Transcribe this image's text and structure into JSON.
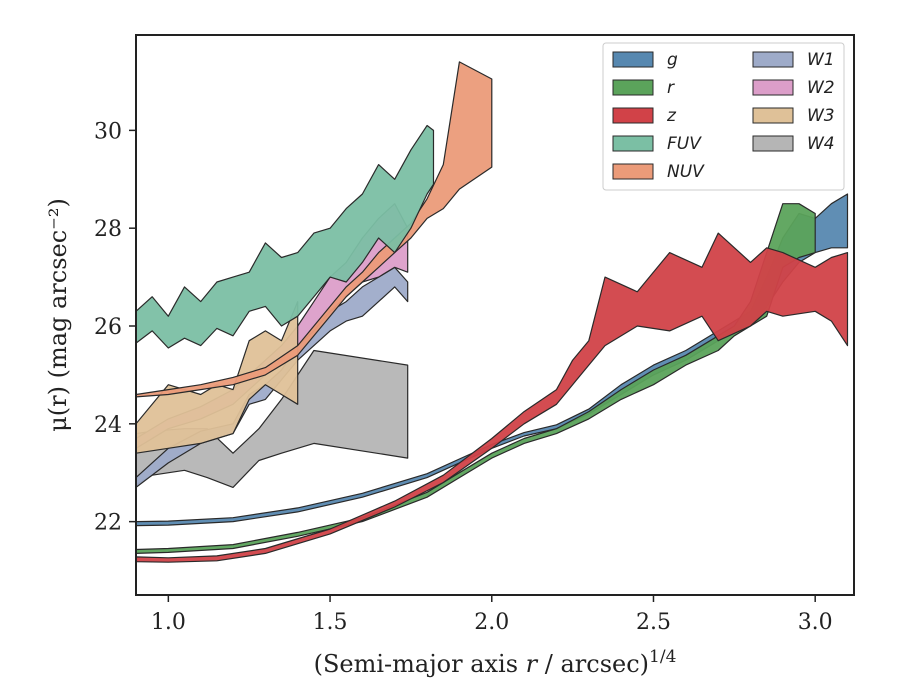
{
  "chart_data": {
    "type": "area",
    "xlabel": "(Semi-major axis r / arcsec)^1/4",
    "ylabel": "μ(r) (mag arcsec⁻²)",
    "xlim": [
      0.9,
      3.12
    ],
    "ylim": [
      31.95,
      20.5
    ],
    "y_inverted": true,
    "xticks": [
      1.0,
      1.5,
      2.0,
      2.5,
      3.0
    ],
    "xtick_labels": [
      "1.0",
      "1.5",
      "2.0",
      "2.5",
      "3.0"
    ],
    "yticks": [
      22,
      24,
      26,
      28,
      30
    ],
    "ytick_labels": [
      "22",
      "24",
      "26",
      "28",
      "30"
    ],
    "grid": false,
    "legend": {
      "position": "top-right",
      "columns": 2
    },
    "series": [
      {
        "name": "W4",
        "color": "#b5b5b5",
        "x": [
          0.9,
          0.95,
          1.05,
          1.12,
          1.2,
          1.28,
          1.35,
          1.45,
          1.74
        ],
        "y_lo": [
          22.75,
          22.95,
          23.05,
          22.9,
          22.7,
          23.25,
          23.4,
          23.6,
          23.3
        ],
        "y_hi": [
          23.8,
          23.85,
          23.9,
          23.9,
          23.4,
          23.9,
          24.5,
          25.5,
          25.2
        ]
      },
      {
        "name": "W1",
        "color": "#9eabc9",
        "x": [
          0.9,
          1.0,
          1.1,
          1.2,
          1.25,
          1.3,
          1.35,
          1.4,
          1.45,
          1.5,
          1.55,
          1.6,
          1.65,
          1.7,
          1.74
        ],
        "y_lo": [
          22.7,
          23.2,
          23.6,
          23.8,
          24.4,
          24.5,
          24.9,
          25.3,
          25.6,
          25.9,
          26.1,
          26.2,
          26.5,
          26.8,
          26.5
        ],
        "y_hi": [
          22.9,
          23.5,
          23.85,
          24.0,
          24.6,
          24.8,
          25.1,
          25.6,
          26.0,
          26.3,
          26.5,
          26.8,
          27.0,
          27.2,
          26.9
        ]
      },
      {
        "name": "W2",
        "color": "#dc9ec9",
        "x": [
          0.9,
          1.0,
          1.1,
          1.2,
          1.25,
          1.3,
          1.35,
          1.4,
          1.45,
          1.5,
          1.55,
          1.6,
          1.65,
          1.7,
          1.74
        ],
        "y_lo": [
          23.5,
          23.9,
          24.1,
          24.4,
          24.7,
          25.0,
          25.3,
          25.6,
          25.9,
          26.3,
          26.6,
          26.9,
          27.0,
          27.2,
          27.1
        ],
        "y_hi": [
          23.7,
          24.1,
          24.35,
          24.7,
          25.0,
          25.3,
          25.6,
          26.0,
          26.5,
          27.0,
          27.3,
          27.8,
          28.2,
          28.5,
          28.0
        ]
      },
      {
        "name": "W3",
        "color": "#dfc198",
        "x": [
          0.9,
          1.0,
          1.1,
          1.15,
          1.2,
          1.25,
          1.3,
          1.35,
          1.4
        ],
        "y_lo": [
          23.4,
          23.5,
          23.6,
          23.7,
          23.8,
          24.5,
          24.8,
          24.6,
          24.4
        ],
        "y_hi": [
          24.0,
          24.8,
          24.6,
          24.8,
          24.7,
          25.7,
          25.9,
          25.7,
          26.5
        ]
      },
      {
        "name": "NUV",
        "color": "#eb9b79",
        "x": [
          0.9,
          1.0,
          1.1,
          1.2,
          1.3,
          1.4,
          1.45,
          1.5,
          1.55,
          1.6,
          1.65,
          1.7,
          1.75,
          1.8,
          1.85,
          1.9,
          2.0
        ],
        "y_lo": [
          24.55,
          24.6,
          24.7,
          24.8,
          25.0,
          25.4,
          25.8,
          26.2,
          26.6,
          26.9,
          27.2,
          27.5,
          27.8,
          28.2,
          28.4,
          28.8,
          29.25
        ],
        "y_hi": [
          24.6,
          24.7,
          24.8,
          24.95,
          25.15,
          25.6,
          26.0,
          26.4,
          26.8,
          27.1,
          27.5,
          27.8,
          28.1,
          28.6,
          29.3,
          31.4,
          31.05
        ]
      },
      {
        "name": "FUV",
        "color": "#7bbfa4",
        "x": [
          0.9,
          0.95,
          1.0,
          1.05,
          1.1,
          1.15,
          1.2,
          1.25,
          1.3,
          1.35,
          1.4,
          1.45,
          1.5,
          1.55,
          1.6,
          1.65,
          1.7,
          1.75,
          1.8,
          1.82
        ],
        "y_lo": [
          25.65,
          25.9,
          25.55,
          25.75,
          25.6,
          25.95,
          25.8,
          26.3,
          26.4,
          26.0,
          26.2,
          26.6,
          27.0,
          26.9,
          27.3,
          27.8,
          27.5,
          28.0,
          28.7,
          28.9
        ],
        "y_hi": [
          26.3,
          26.6,
          26.2,
          26.8,
          26.5,
          26.9,
          27.0,
          27.1,
          27.7,
          27.4,
          27.5,
          27.9,
          28.0,
          28.4,
          28.7,
          29.3,
          29.0,
          29.6,
          30.1,
          30.0
        ]
      },
      {
        "name": "g",
        "color": "#5788b0",
        "x": [
          0.9,
          1.0,
          1.2,
          1.4,
          1.6,
          1.8,
          1.9,
          2.0,
          2.1,
          2.2,
          2.3,
          2.4,
          2.5,
          2.6,
          2.7,
          2.8,
          2.85,
          2.9,
          2.95,
          3.0,
          3.05,
          3.1
        ],
        "y_lo": [
          21.92,
          21.93,
          22.0,
          22.2,
          22.5,
          22.9,
          23.2,
          23.5,
          23.75,
          23.9,
          24.2,
          24.6,
          25.0,
          25.3,
          25.7,
          26.0,
          26.4,
          26.9,
          27.3,
          27.5,
          27.6,
          27.6
        ],
        "y_hi": [
          22.0,
          22.01,
          22.08,
          22.28,
          22.58,
          22.98,
          23.28,
          23.58,
          23.82,
          23.98,
          24.3,
          24.8,
          25.2,
          25.5,
          25.9,
          26.3,
          27.0,
          27.8,
          28.3,
          28.2,
          28.5,
          28.7
        ]
      },
      {
        "name": "r",
        "color": "#5ba35b",
        "x": [
          0.9,
          1.0,
          1.2,
          1.4,
          1.6,
          1.8,
          1.9,
          2.0,
          2.1,
          2.2,
          2.3,
          2.4,
          2.5,
          2.6,
          2.7,
          2.75,
          2.8,
          2.85,
          2.9,
          2.95,
          3.0
        ],
        "y_lo": [
          21.35,
          21.37,
          21.45,
          21.7,
          22.0,
          22.5,
          22.9,
          23.3,
          23.6,
          23.8,
          24.1,
          24.5,
          24.8,
          25.2,
          25.5,
          25.8,
          26.0,
          26.2,
          27.2,
          27.4,
          27.5
        ],
        "y_hi": [
          21.43,
          21.45,
          21.53,
          21.78,
          22.08,
          22.6,
          23.0,
          23.4,
          23.7,
          23.9,
          24.25,
          24.7,
          25.1,
          25.4,
          25.8,
          26.0,
          26.5,
          27.5,
          28.5,
          28.5,
          28.3
        ]
      },
      {
        "name": "z",
        "color": "#d14248",
        "x": [
          0.9,
          1.0,
          1.15,
          1.3,
          1.5,
          1.7,
          1.85,
          2.0,
          2.1,
          2.2,
          2.25,
          2.3,
          2.35,
          2.45,
          2.55,
          2.65,
          2.7,
          2.8,
          2.85,
          2.9,
          3.0,
          3.05,
          3.1
        ],
        "y_lo": [
          21.18,
          21.17,
          21.2,
          21.35,
          21.75,
          22.3,
          22.8,
          23.5,
          24.0,
          24.4,
          24.8,
          25.2,
          25.6,
          26.0,
          25.9,
          26.2,
          25.7,
          26.0,
          26.3,
          26.2,
          26.3,
          26.1,
          25.6
        ],
        "y_hi": [
          21.28,
          21.26,
          21.3,
          21.45,
          21.85,
          22.42,
          22.95,
          23.7,
          24.25,
          24.7,
          25.3,
          25.7,
          27.0,
          26.7,
          27.5,
          27.2,
          27.9,
          27.3,
          27.6,
          27.5,
          27.2,
          27.4,
          27.5
        ]
      }
    ],
    "legend_order": [
      "g",
      "r",
      "z",
      "FUV",
      "NUV",
      "W1",
      "W2",
      "W3",
      "W4"
    ],
    "legend_text": {
      "g": "g",
      "r": "r",
      "z": "z",
      "FUV": "FUV",
      "NUV": "NUV",
      "W1": "W1",
      "W2": "W2",
      "W3": "W3",
      "W4": "W4"
    }
  }
}
